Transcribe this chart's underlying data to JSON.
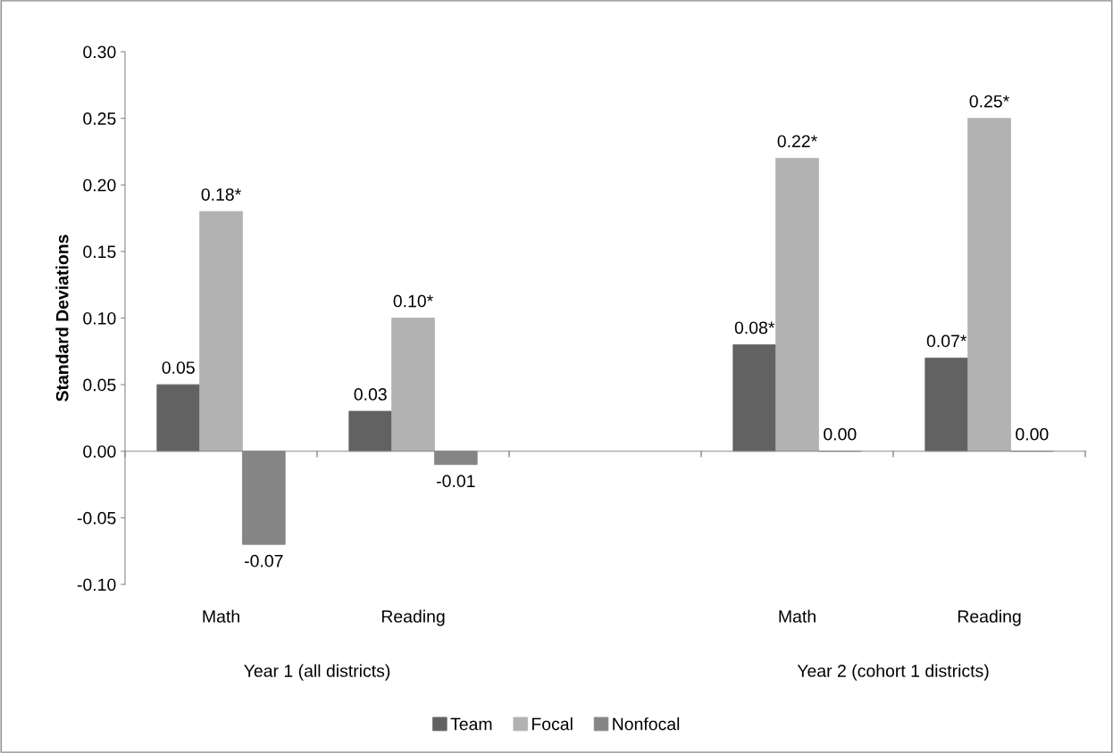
{
  "chart_data": {
    "type": "bar",
    "ylabel": "Standard Deviations",
    "categories": [
      "Math",
      "Reading",
      null,
      "Math",
      "Reading"
    ],
    "series": [
      {
        "name": "Team",
        "color": "#626262",
        "values": [
          0.05,
          0.03,
          null,
          0.08,
          0.07
        ],
        "value_labels": [
          "0.05",
          "0.03",
          null,
          "0.08*",
          "0.07*"
        ]
      },
      {
        "name": "Focal",
        "color": "#b2b2b2",
        "values": [
          0.18,
          0.1,
          null,
          0.22,
          0.25
        ],
        "value_labels": [
          "0.18*",
          "0.10*",
          null,
          "0.22*",
          "0.25*"
        ]
      },
      {
        "name": "Nonfocal",
        "color": "#858585",
        "values": [
          -0.07,
          -0.01,
          null,
          0.0,
          0.0
        ],
        "value_labels": [
          "-0.07",
          "-0.01",
          null,
          "0.00",
          "0.00"
        ]
      }
    ],
    "ylim": [
      -0.1,
      0.3
    ],
    "yticks": [
      "-0.10",
      "-0.05",
      "0.00",
      "0.05",
      "0.10",
      "0.15",
      "0.20",
      "0.25",
      "0.30"
    ],
    "annotations": [
      "Year 1 (all districts)",
      "Year 2 (cohort 1 districts)"
    ],
    "grid": false,
    "legend": "bottom"
  }
}
